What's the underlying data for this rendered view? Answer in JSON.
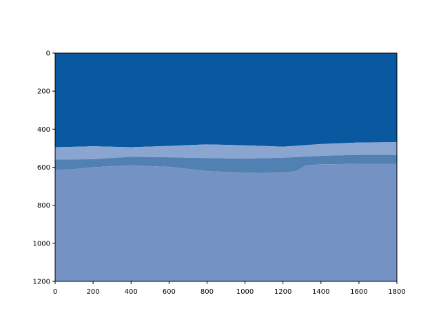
{
  "chart_data": {
    "type": "heatmap",
    "title": "",
    "xlabel": "",
    "ylabel": "",
    "xlim": [
      0,
      1800
    ],
    "ylim": [
      1200,
      0
    ],
    "y_inverted": true,
    "grid": false,
    "legend": "none",
    "x_ticks": [
      {
        "value": 0,
        "label": "0"
      },
      {
        "value": 200,
        "label": "200"
      },
      {
        "value": 400,
        "label": "400"
      },
      {
        "value": 600,
        "label": "600"
      },
      {
        "value": 800,
        "label": "800"
      },
      {
        "value": 1000,
        "label": "1000"
      },
      {
        "value": 1200,
        "label": "1200"
      },
      {
        "value": 1400,
        "label": "1400"
      },
      {
        "value": 1600,
        "label": "1600"
      },
      {
        "value": 1800,
        "label": "1800"
      }
    ],
    "y_ticks": [
      {
        "value": 0,
        "label": "0"
      },
      {
        "value": 200,
        "label": "200"
      },
      {
        "value": 400,
        "label": "400"
      },
      {
        "value": 600,
        "label": "600"
      },
      {
        "value": 800,
        "label": "800"
      },
      {
        "value": 1000,
        "label": "1000"
      },
      {
        "value": 1200,
        "label": "1200"
      }
    ],
    "colors": {
      "sky": "#0a58a0",
      "foam": "#8aa5d0",
      "wet_sand": "#5180b2",
      "sand": "#7493c4"
    },
    "bands": [
      {
        "name": "sky",
        "color": "#0a58a0",
        "lower_boundary": [
          [
            0,
            495
          ],
          [
            200,
            490
          ],
          [
            400,
            495
          ],
          [
            600,
            488
          ],
          [
            800,
            480
          ],
          [
            1000,
            485
          ],
          [
            1200,
            492
          ],
          [
            1400,
            478
          ],
          [
            1600,
            470
          ],
          [
            1800,
            468
          ]
        ]
      },
      {
        "name": "foam",
        "color": "#8aa5d0",
        "lower_boundary": [
          [
            0,
            560
          ],
          [
            200,
            558
          ],
          [
            400,
            545
          ],
          [
            600,
            548
          ],
          [
            800,
            552
          ],
          [
            1000,
            555
          ],
          [
            1200,
            550
          ],
          [
            1400,
            540
          ],
          [
            1600,
            535
          ],
          [
            1800,
            535
          ]
        ]
      },
      {
        "name": "wet_sand",
        "color": "#5180b2",
        "lower_boundary": [
          [
            0,
            615
          ],
          [
            100,
            610
          ],
          [
            200,
            600
          ],
          [
            400,
            590
          ],
          [
            600,
            598
          ],
          [
            800,
            620
          ],
          [
            1000,
            630
          ],
          [
            1200,
            628
          ],
          [
            1270,
            620
          ],
          [
            1320,
            590
          ],
          [
            1400,
            585
          ],
          [
            1600,
            582
          ],
          [
            1800,
            582
          ]
        ]
      },
      {
        "name": "sand",
        "color": "#7493c4",
        "lower_boundary": [
          [
            0,
            1200
          ],
          [
            1800,
            1200
          ]
        ]
      }
    ]
  }
}
